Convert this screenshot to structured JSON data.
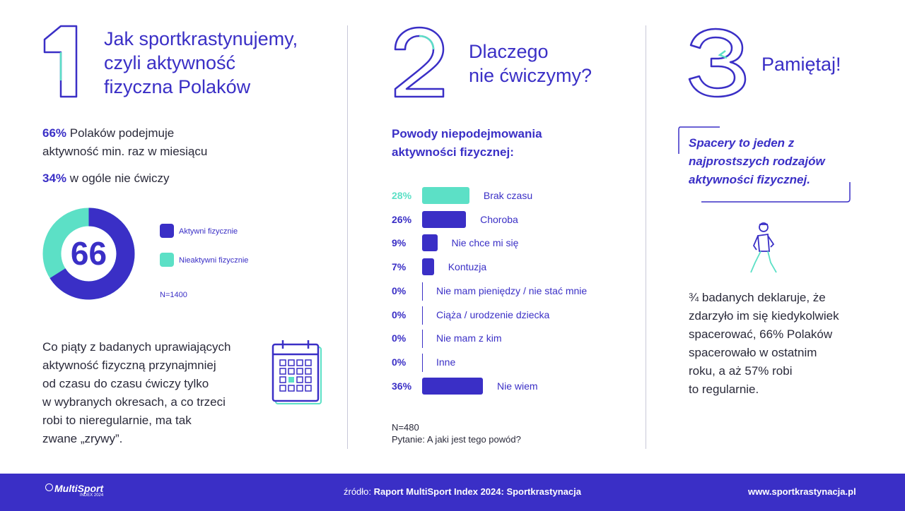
{
  "col1": {
    "number": "1",
    "title_lines": [
      "Jak sportkrastynujemy,",
      "czyli aktywność",
      "fizyczna Polaków"
    ],
    "stat1_pct": "66%",
    "stat1_rest_line1": " Polaków podejmuje",
    "stat1_line2": "aktywność min. raz w miesiącu",
    "stat2_pct": "34%",
    "stat2_rest": " w ogóle nie ćwiczy",
    "donut": {
      "center_label": "66",
      "active_value": 66,
      "inactive_value": 34,
      "active_color": "#3a2fc6",
      "inactive_color": "#5ce0c6"
    },
    "legend": [
      {
        "label": "Aktywni fizycznie",
        "color": "#3a2fc6"
      },
      {
        "label": "Nieaktywni fizycznie",
        "color": "#5ce0c6"
      }
    ],
    "n_label": "N=1400",
    "paragraph_lines": [
      "Co piąty z badanych uprawiających",
      "aktywność fizyczną przynajmniej",
      "od czasu do czasu ćwiczy tylko",
      "w wybranych okresach, a co trzeci",
      "robi to nieregularnie, ma tak",
      "zwane „zrywy”."
    ]
  },
  "col2": {
    "number": "2",
    "title_lines": [
      "Dlaczego",
      "nie ćwiczymy?"
    ],
    "chart_title_lines": [
      "Powody niepodejmowania",
      "aktywności fizycznej:"
    ],
    "n_label": "N=480",
    "question": "Pytanie: A jaki jest tego powód?"
  },
  "chart_data": {
    "type": "bar",
    "orientation": "horizontal",
    "title": "Powody niepodejmowania aktywności fizycznej:",
    "unit": "%",
    "categories": [
      "Brak czasu",
      "Choroba",
      "Nie chce mi się",
      "Kontuzja",
      "Nie mam pieniędzy / nie stać mnie",
      "Ciąża / urodzenie dziecka",
      "Nie mam z kim",
      "Inne",
      "Nie wiem"
    ],
    "values": [
      28,
      26,
      9,
      7,
      0,
      0,
      0,
      0,
      36
    ],
    "value_labels": [
      "28%",
      "26%",
      "9%",
      "7%",
      "0%",
      "0%",
      "0%",
      "0%",
      "36%"
    ],
    "colors": [
      "#5ce0c6",
      "#3a2fc6",
      "#3a2fc6",
      "#3a2fc6",
      "#3a2fc6",
      "#3a2fc6",
      "#3a2fc6",
      "#3a2fc6",
      "#3a2fc6"
    ],
    "highlight_label_color": "#5ce0c6",
    "xlim": [
      0,
      36
    ]
  },
  "col3": {
    "number": "3",
    "title": "Pamiętaj!",
    "quote_lines": [
      "Spacery to jeden z",
      "najprostszych rodzajów",
      "aktywności fizycznej."
    ],
    "paragraph_lines": [
      "¾ badanych deklaruje, że",
      "zdarzyło im się kiedykolwiek",
      "spacerować, 66% Polaków",
      "spacerowało w ostatnim",
      "roku, a aż 57% robi",
      "to regularnie."
    ]
  },
  "footer": {
    "logo_text": "MultiSport",
    "logo_sub": "INDEX 2024",
    "source_prefix": "źródło: ",
    "source_bold": "Raport MultiSport Index 2024: Sportkrastynacja",
    "url": "www.sportkrastynacja.pl"
  }
}
